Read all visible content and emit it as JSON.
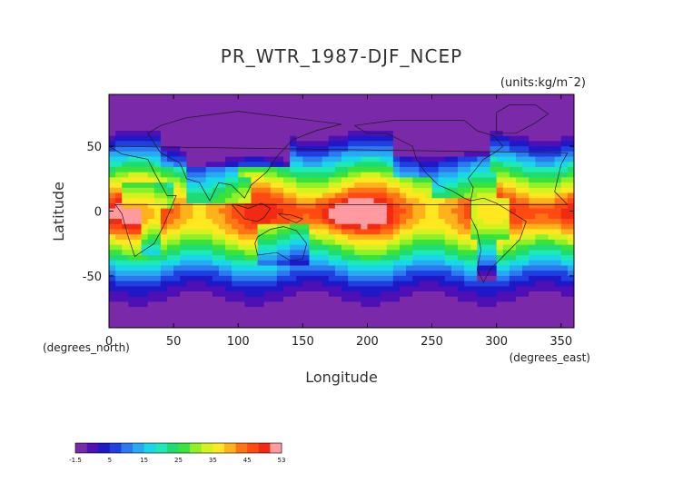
{
  "chart_data": {
    "type": "heatmap",
    "title": "PR_WTR_1987-DJF_NCEP",
    "units": "(units:kg/m¯2)",
    "xlabel": "Longitude",
    "ylabel": "Latitude",
    "x_unit": "(degrees_east)",
    "y_unit": "(degrees_north)",
    "xlim": [
      0,
      360
    ],
    "ylim": [
      -90,
      90
    ],
    "x_ticks": [
      0,
      50,
      100,
      150,
      200,
      250,
      300,
      350
    ],
    "y_ticks": [
      50,
      0,
      -50
    ],
    "grid": false,
    "colorbar": {
      "orientation": "horizontal",
      "placement": "bottom-left",
      "labels": [
        "-1.5",
        "5",
        "15",
        "25",
        "35",
        "45",
        "53"
      ],
      "colors": [
        "#7a2aa8",
        "#4e0fb5",
        "#1e18c6",
        "#1f3fe0",
        "#2a79ee",
        "#27aaf0",
        "#19d6ea",
        "#1ee8b4",
        "#1fdc72",
        "#39e33b",
        "#8ff027",
        "#d4f220",
        "#ffe81f",
        "#ffb21a",
        "#ff7414",
        "#ff4a12",
        "#f22a14",
        "#ff9aa0"
      ]
    },
    "field": {
      "variable": "precipitable water",
      "season": "DJF 1987",
      "source": "NCEP",
      "min": -1.5,
      "max": 53,
      "pattern": "zonal bands: maximum over tropical western Pacific (~45-53), moist tropics 35-45, mid-latitudes 15-25, polar regions 0-5"
    }
  }
}
